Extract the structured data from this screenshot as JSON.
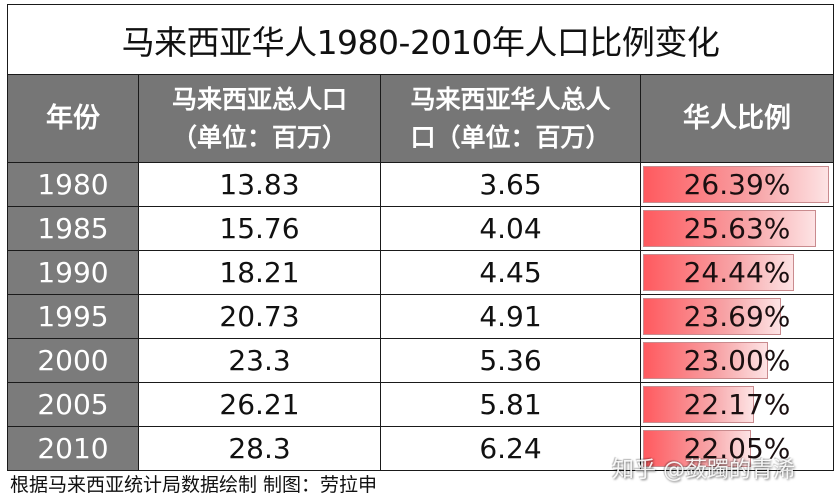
{
  "title": "马来西亚华人1980-2010年人口比例变化",
  "headers": {
    "year": "年份",
    "total_pop_line1": "马来西亚总人口",
    "total_pop_line2": "（单位：百万）",
    "chinese_pop_line1": "马来西亚华人总人",
    "chinese_pop_line2": "口（单位：百万）",
    "ratio": "华人比例"
  },
  "rows": [
    {
      "year": "1980",
      "total": "13.83",
      "chinese": "3.65",
      "ratio": "26.39%",
      "ratio_value": 26.39
    },
    {
      "year": "1985",
      "total": "15.76",
      "chinese": "4.04",
      "ratio": "25.63%",
      "ratio_value": 25.63
    },
    {
      "year": "1990",
      "total": "18.21",
      "chinese": "4.45",
      "ratio": "24.44%",
      "ratio_value": 24.44
    },
    {
      "year": "1995",
      "total": "20.73",
      "chinese": "4.91",
      "ratio": "23.69%",
      "ratio_value": 23.69
    },
    {
      "year": "2000",
      "total": "23.3",
      "chinese": "5.36",
      "ratio": "23.00%",
      "ratio_value": 23.0
    },
    {
      "year": "2005",
      "total": "26.21",
      "chinese": "5.81",
      "ratio": "22.17%",
      "ratio_value": 22.17
    },
    {
      "year": "2010",
      "total": "28.3",
      "chinese": "6.24",
      "ratio": "22.05%",
      "ratio_value": 22.05
    }
  ],
  "footer": "根据马来西亚统计局数据绘制  制图：劳拉申",
  "watermark": "知乎 @蔹躅的青浠",
  "colors": {
    "header_bg": "#767676",
    "year_bg": "#7b7b7b",
    "bar_start": "#ff5a5f",
    "bar_end": "#fde3e4"
  }
}
